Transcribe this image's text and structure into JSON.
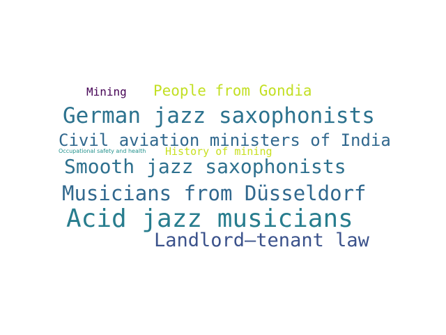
{
  "words": [
    {
      "text": "Mining",
      "color": "#440154"
    },
    {
      "text": "People from Gondia",
      "color": "#c2df23"
    },
    {
      "text": "German jazz saxophonists",
      "color": "#2c728e"
    },
    {
      "text": "Civil aviation ministers of India",
      "color": "#31688e"
    },
    {
      "text": "Occupational safety and health",
      "color": "#21918c"
    },
    {
      "text": "History of mining",
      "color": "#c8e020"
    },
    {
      "text": "Smooth jazz saxophonists",
      "color": "#2d708e"
    },
    {
      "text": "Musicians from Düsseldorf",
      "color": "#31688e"
    },
    {
      "text": "Acid jazz musicians",
      "color": "#287d8e"
    },
    {
      "text": "Landlord–tenant law",
      "color": "#3b528b"
    }
  ]
}
